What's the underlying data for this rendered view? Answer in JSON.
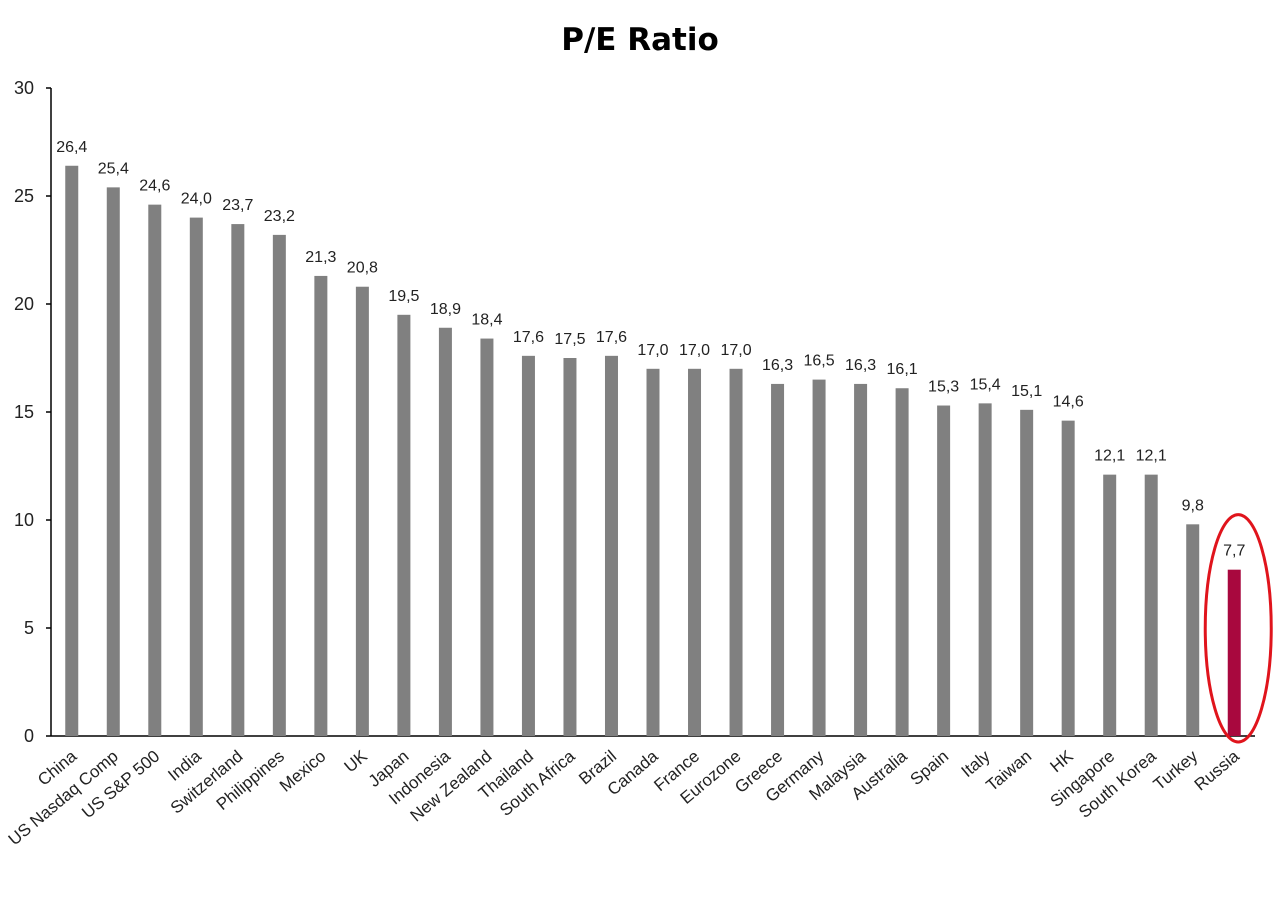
{
  "chart_data": {
    "type": "bar",
    "title": "P/E Ratio",
    "xlabel": "",
    "ylabel": "",
    "ylim": [
      0,
      30
    ],
    "yticks": [
      "0",
      "5",
      "10",
      "15",
      "20",
      "25",
      "30"
    ],
    "grid": false,
    "categories": [
      "China",
      "US Nasdaq Comp",
      "US S&P 500",
      "India",
      "Switzerland",
      "Philippines",
      "Mexico",
      "UK",
      "Japan",
      "Indonesia",
      "New Zealand",
      "Thailand",
      "South Africa",
      "Brazil",
      "Canada",
      "France",
      "Eurozone",
      "Greece",
      "Germany",
      "Malaysia",
      "Australia",
      "Spain",
      "Italy",
      "Taiwan",
      "HK",
      "Singapore",
      "South Korea",
      "Turkey",
      "Russia"
    ],
    "values": [
      26.4,
      25.4,
      24.6,
      24.0,
      23.7,
      23.2,
      21.3,
      20.8,
      19.5,
      18.9,
      18.4,
      17.6,
      17.5,
      17.6,
      17.0,
      17.0,
      17.0,
      16.3,
      16.5,
      16.3,
      16.1,
      15.3,
      15.4,
      15.1,
      14.6,
      12.1,
      12.1,
      9.8,
      7.7
    ],
    "data_labels": [
      "26,4",
      "25,4",
      "24,6",
      "24,0",
      "23,7",
      "23,2",
      "21,3",
      "20,8",
      "19,5",
      "18,9",
      "18,4",
      "17,6",
      "17,5",
      "17,6",
      "17,0",
      "17,0",
      "17,0",
      "16,3",
      "16,5",
      "16,3",
      "16,1",
      "15,3",
      "15,4",
      "15,1",
      "14,6",
      "12,1",
      "12,1",
      "9,8",
      "7,7"
    ],
    "colors": {
      "bar": "#808080",
      "highlight_bar": "#a8083e",
      "highlight_ring": "#e0141c",
      "axis": "#000000"
    },
    "highlight": "Russia"
  }
}
